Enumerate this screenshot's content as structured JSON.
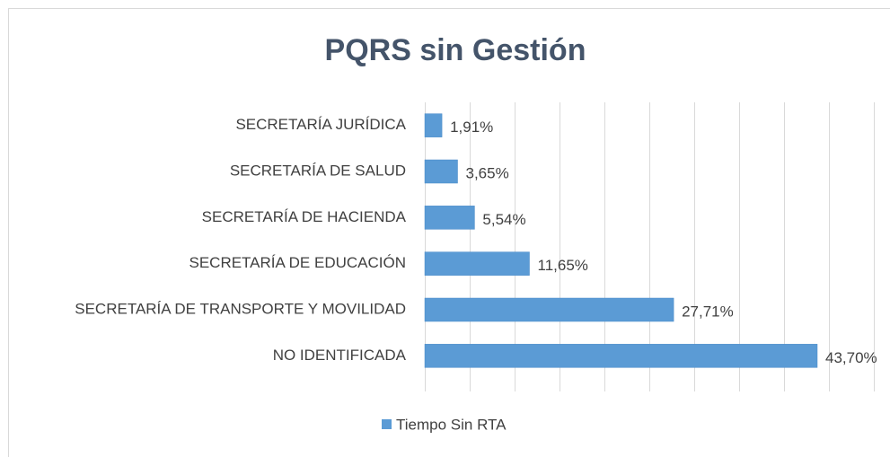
{
  "chart_data": {
    "type": "bar",
    "orientation": "horizontal",
    "title": "PQRS sin Gestión",
    "categories": [
      "SECRETARÍA JURÍDICA",
      "SECRETARÍA DE SALUD",
      "SECRETARÍA DE HACIENDA",
      "SECRETARÍA DE EDUCACIÓN",
      "SECRETARÍA DE TRANSPORTE Y MOVILIDAD",
      "NO IDENTIFICADA"
    ],
    "series": [
      {
        "name": "Tiempo Sin RTA",
        "color": "#5b9bd5",
        "values": [
          1.91,
          3.65,
          5.54,
          11.65,
          27.71,
          43.7
        ],
        "value_labels": [
          "1,91%",
          "3,65%",
          "5,54%",
          "11,65%",
          "27,71%",
          "43,70%"
        ]
      }
    ],
    "xlim": [
      0,
      50
    ],
    "xticks": [
      0,
      5,
      10,
      15,
      20,
      25,
      30,
      35,
      40,
      45,
      50
    ],
    "grid": true,
    "legend": "bottom"
  }
}
